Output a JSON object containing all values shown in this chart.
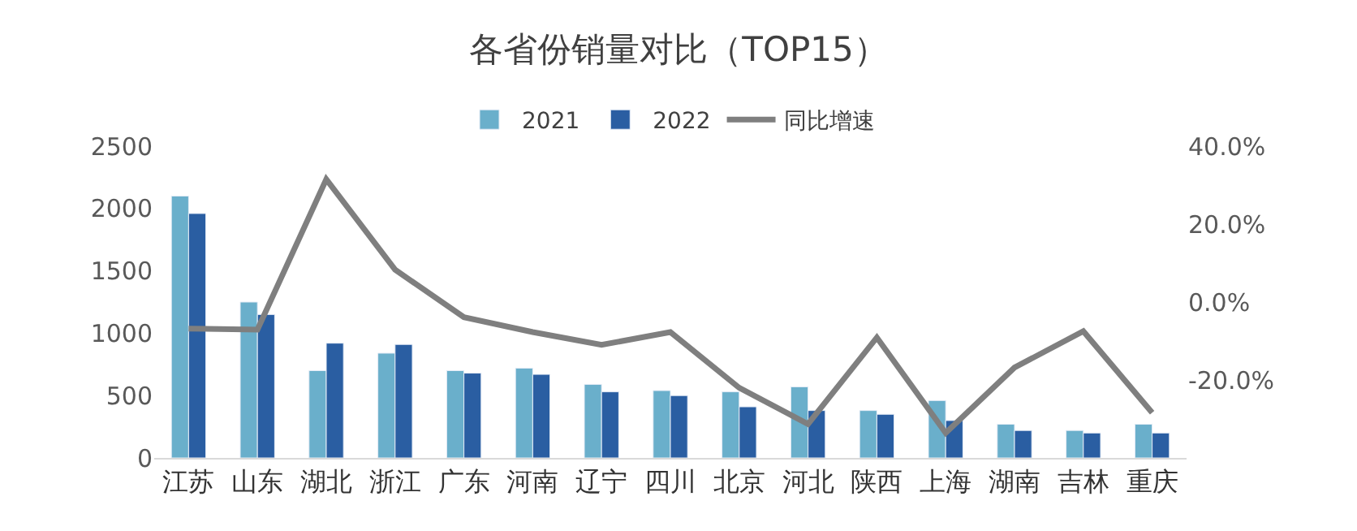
{
  "chart_data": {
    "type": "bar",
    "title": "各省份销量对比（TOP15）",
    "categories": [
      "江苏",
      "山东",
      "湖北",
      "浙江",
      "广东",
      "河南",
      "辽宁",
      "四川",
      "北京",
      "河北",
      "陕西",
      "上海",
      "湖南",
      "吉林",
      "重庆"
    ],
    "series": [
      {
        "name": "2021",
        "color": "#6aafcb",
        "values": [
          2100,
          1250,
          700,
          840,
          700,
          720,
          590,
          540,
          530,
          570,
          380,
          460,
          270,
          220,
          270
        ]
      },
      {
        "name": "2022",
        "color": "#2a5ea2",
        "values": [
          1960,
          1150,
          920,
          910,
          680,
          670,
          530,
          500,
          410,
          380,
          350,
          300,
          220,
          200,
          200
        ]
      },
      {
        "name": "同比增速",
        "type": "line",
        "axis": "y2",
        "color": "#7f7f7f",
        "values": [
          -6.8,
          -7.1,
          31.5,
          8.3,
          -3.9,
          -7.7,
          -11.0,
          -7.7,
          -22.0,
          -31.3,
          -9.1,
          -33.6,
          -16.8,
          -7.5,
          -28.4
        ]
      }
    ],
    "ylim": [
      0,
      2500
    ],
    "yticks": [
      0,
      500,
      1000,
      1500,
      2000,
      2500
    ],
    "y2lim": [
      -40,
      40
    ],
    "y2ticks": [
      {
        "value": -20,
        "label": "-20.0%"
      },
      {
        "value": 0,
        "label": "0.0%"
      },
      {
        "value": 20,
        "label": "20.0%"
      },
      {
        "value": 40,
        "label": "40.0%"
      }
    ],
    "legend": "top",
    "marker": "none"
  }
}
